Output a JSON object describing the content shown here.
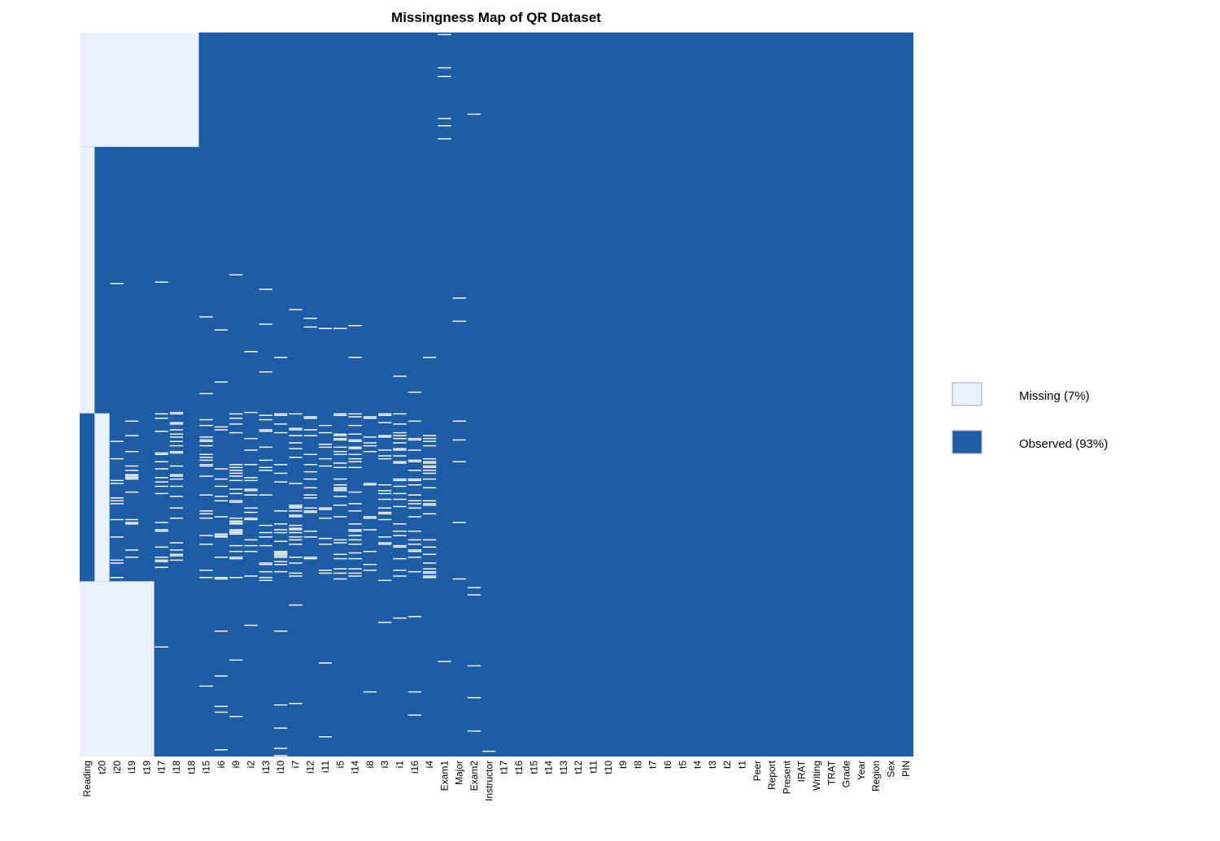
{
  "chart_data": {
    "type": "heatmap",
    "title": "Missingness Map of QR Dataset",
    "xlabel": "",
    "ylabel": "",
    "row_count_estimate": 500,
    "variables": [
      "Reading",
      "t20",
      "i20",
      "i19",
      "t19",
      "i17",
      "i18",
      "t18",
      "i15",
      "i6",
      "i9",
      "i2",
      "i13",
      "i10",
      "i7",
      "i12",
      "i11",
      "i5",
      "i14",
      "i8",
      "i3",
      "i1",
      "i16",
      "i4",
      "Exam1",
      "Major",
      "Exam2",
      "Instructor",
      "t17",
      "t16",
      "t15",
      "t14",
      "t13",
      "t12",
      "t11",
      "t10",
      "t9",
      "t8",
      "t7",
      "t6",
      "t5",
      "t4",
      "t3",
      "t2",
      "t1",
      "Peer",
      "Report",
      "Present",
      "IRAT",
      "Writing",
      "TRAT",
      "Grade",
      "Year",
      "Region",
      "Sex",
      "PIN"
    ],
    "legend": {
      "position": "right",
      "entries": [
        {
          "label": "Missing (7%)",
          "color": "#eaf0fc"
        },
        {
          "label": "Observed (93%)",
          "color": "#1d5ca6"
        }
      ]
    },
    "colors": {
      "missing": "#eaf0fc",
      "observed": "#1d5ca6",
      "legend_border": "#9aa6bd"
    },
    "missing_blocks": [
      {
        "vars": [
          "Reading",
          "t20",
          "i20",
          "i19",
          "t19",
          "i17",
          "i18",
          "t18"
        ],
        "rows": [
          0,
          79
        ]
      },
      {
        "vars": [
          "Reading"
        ],
        "rows": [
          79,
          263
        ]
      },
      {
        "vars": [
          "t20"
        ],
        "rows": [
          263,
          379
        ]
      },
      {
        "vars": [
          "Reading",
          "t20",
          "i20",
          "i19",
          "t19"
        ],
        "rows": [
          379,
          500
        ]
      }
    ],
    "scattered_missing_rows": {
      "Exam1": [
        1,
        24,
        30,
        59,
        64,
        73,
        434
      ],
      "Major": [
        183,
        199,
        268,
        281,
        296,
        338,
        377
      ],
      "Exam2": [
        56,
        383,
        388,
        437,
        459,
        482
      ],
      "Instructor": [
        496
      ],
      "i17": [
        172,
        310,
        424
      ],
      "i20": [
        173
      ],
      "i9": [
        167,
        433,
        472
      ],
      "i15": [
        196,
        249,
        451
      ],
      "i6": [
        205,
        241,
        413,
        444,
        465,
        469,
        495
      ],
      "i2": [
        220,
        409
      ],
      "i13": [
        177,
        201,
        234
      ],
      "i10": [
        224,
        413,
        464,
        480,
        494,
        499
      ],
      "i7": [
        191,
        395,
        463
      ],
      "i12": [
        197,
        203
      ],
      "i11": [
        204,
        435,
        486
      ],
      "i5": [
        204
      ],
      "i14": [
        202,
        224
      ],
      "i8": [
        455
      ],
      "i3": [
        407
      ],
      "i1": [
        237,
        404
      ],
      "i16": [
        248,
        403,
        455,
        471
      ],
      "i4": [
        224
      ]
    },
    "dense_band": {
      "rows": [
        262,
        379
      ],
      "vars": [
        "i20",
        "i19",
        "i17",
        "i18",
        "i15",
        "i6",
        "i9",
        "i2",
        "i13",
        "i10",
        "i7",
        "i12",
        "i11",
        "i5",
        "i14",
        "i8",
        "i3",
        "i1",
        "i16",
        "i4"
      ]
    }
  }
}
